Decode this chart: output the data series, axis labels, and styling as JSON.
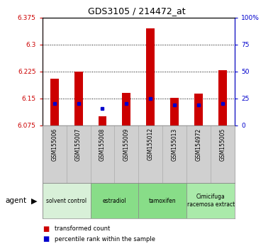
{
  "title": "GDS3105 / 214472_at",
  "samples": [
    "GSM155006",
    "GSM155007",
    "GSM155008",
    "GSM155009",
    "GSM155012",
    "GSM155013",
    "GSM154972",
    "GSM155005"
  ],
  "bar_tops": [
    6.205,
    6.225,
    6.1,
    6.165,
    6.345,
    6.152,
    6.163,
    6.228
  ],
  "bar_bottoms": [
    6.075,
    6.075,
    6.075,
    6.075,
    6.075,
    6.075,
    6.075,
    6.075
  ],
  "blue_positions": [
    6.137,
    6.137,
    6.123,
    6.137,
    6.15,
    6.133,
    6.133,
    6.137
  ],
  "ylim_left": [
    6.075,
    6.375
  ],
  "yticks_left": [
    6.075,
    6.15,
    6.225,
    6.3,
    6.375
  ],
  "ytick_labels_left": [
    "6.075",
    "6.15",
    "6.225",
    "6.3",
    "6.375"
  ],
  "ylim_right": [
    0,
    100
  ],
  "yticks_right": [
    0,
    25,
    50,
    75,
    100
  ],
  "ytick_labels_right": [
    "0",
    "25",
    "50",
    "75",
    "100%"
  ],
  "bar_color": "#cc0000",
  "blue_color": "#0000cc",
  "left_tick_color": "#cc0000",
  "right_tick_color": "#0000cc",
  "agent_label": "agent",
  "legend_items": [
    "transformed count",
    "percentile rank within the sample"
  ],
  "sample_box_color": "#d0d0d0",
  "groups": [
    {
      "label": "solvent control",
      "color": "#d8f0d8",
      "start": 0,
      "end": 2
    },
    {
      "label": "estradiol",
      "color": "#88dd88",
      "start": 2,
      "end": 4
    },
    {
      "label": "tamoxifen",
      "color": "#88dd88",
      "start": 4,
      "end": 6
    },
    {
      "label": "Cimicifuga\nracemosa extract",
      "color": "#aaeaaa",
      "start": 6,
      "end": 8
    }
  ]
}
